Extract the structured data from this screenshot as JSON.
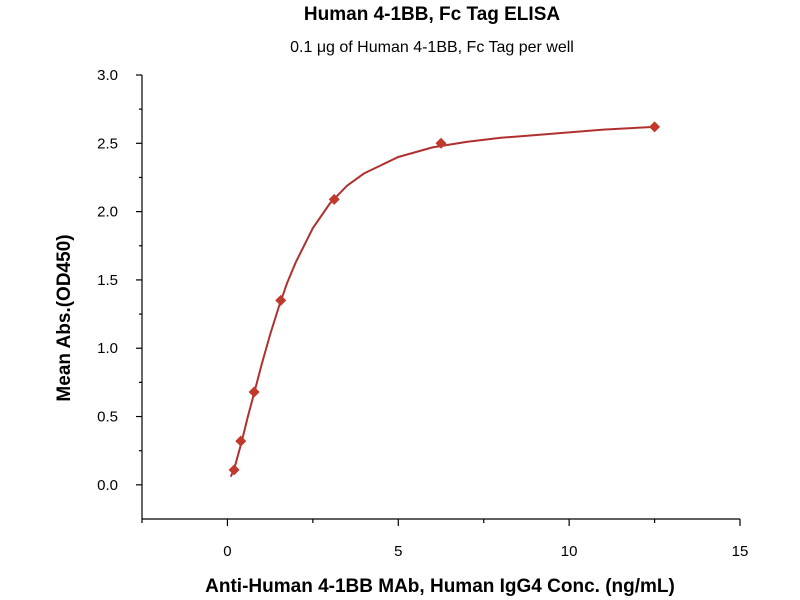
{
  "chart_data": {
    "type": "scatter",
    "title": "Human 4-1BB, Fc Tag ELISA",
    "subtitle": "0.1 μg of Human 4-1BB, Fc Tag per well",
    "xlabel": "Anti-Human 4-1BB  MAb, Human IgG4 Conc. (ng/mL)",
    "ylabel": "Mean Abs.(OD450)",
    "xlim": [
      -2.5,
      15
    ],
    "ylim": [
      -0.25,
      3.0
    ],
    "x_ticks": [
      0,
      5,
      10,
      15
    ],
    "y_ticks": [
      0.0,
      0.5,
      1.0,
      1.5,
      2.0,
      2.5,
      3.0
    ],
    "x_tick_labels": [
      "0",
      "5",
      "10",
      "15"
    ],
    "y_tick_labels": [
      "0.0",
      "0.5",
      "1.0",
      "1.5",
      "2.0",
      "2.5",
      "3.0"
    ],
    "grid": false,
    "marker_color": "#c0392b",
    "line_color": "#b03030",
    "series": [
      {
        "x": [
          0.195,
          0.39,
          0.78,
          1.56,
          3.125,
          6.25,
          12.5
        ],
        "y": [
          0.11,
          0.32,
          0.68,
          1.35,
          2.09,
          2.5,
          2.62
        ]
      }
    ],
    "fit_curve": {
      "x": [
        0.1,
        0.2,
        0.4,
        0.6,
        0.8,
        1.0,
        1.25,
        1.5,
        1.75,
        2.0,
        2.5,
        3.0,
        3.5,
        4.0,
        5.0,
        6.0,
        7.0,
        8.0,
        9.0,
        10.0,
        11.0,
        12.5
      ],
      "y": [
        0.06,
        0.12,
        0.3,
        0.5,
        0.69,
        0.88,
        1.1,
        1.3,
        1.48,
        1.63,
        1.88,
        2.06,
        2.19,
        2.28,
        2.4,
        2.47,
        2.51,
        2.54,
        2.56,
        2.58,
        2.6,
        2.62
      ]
    }
  }
}
